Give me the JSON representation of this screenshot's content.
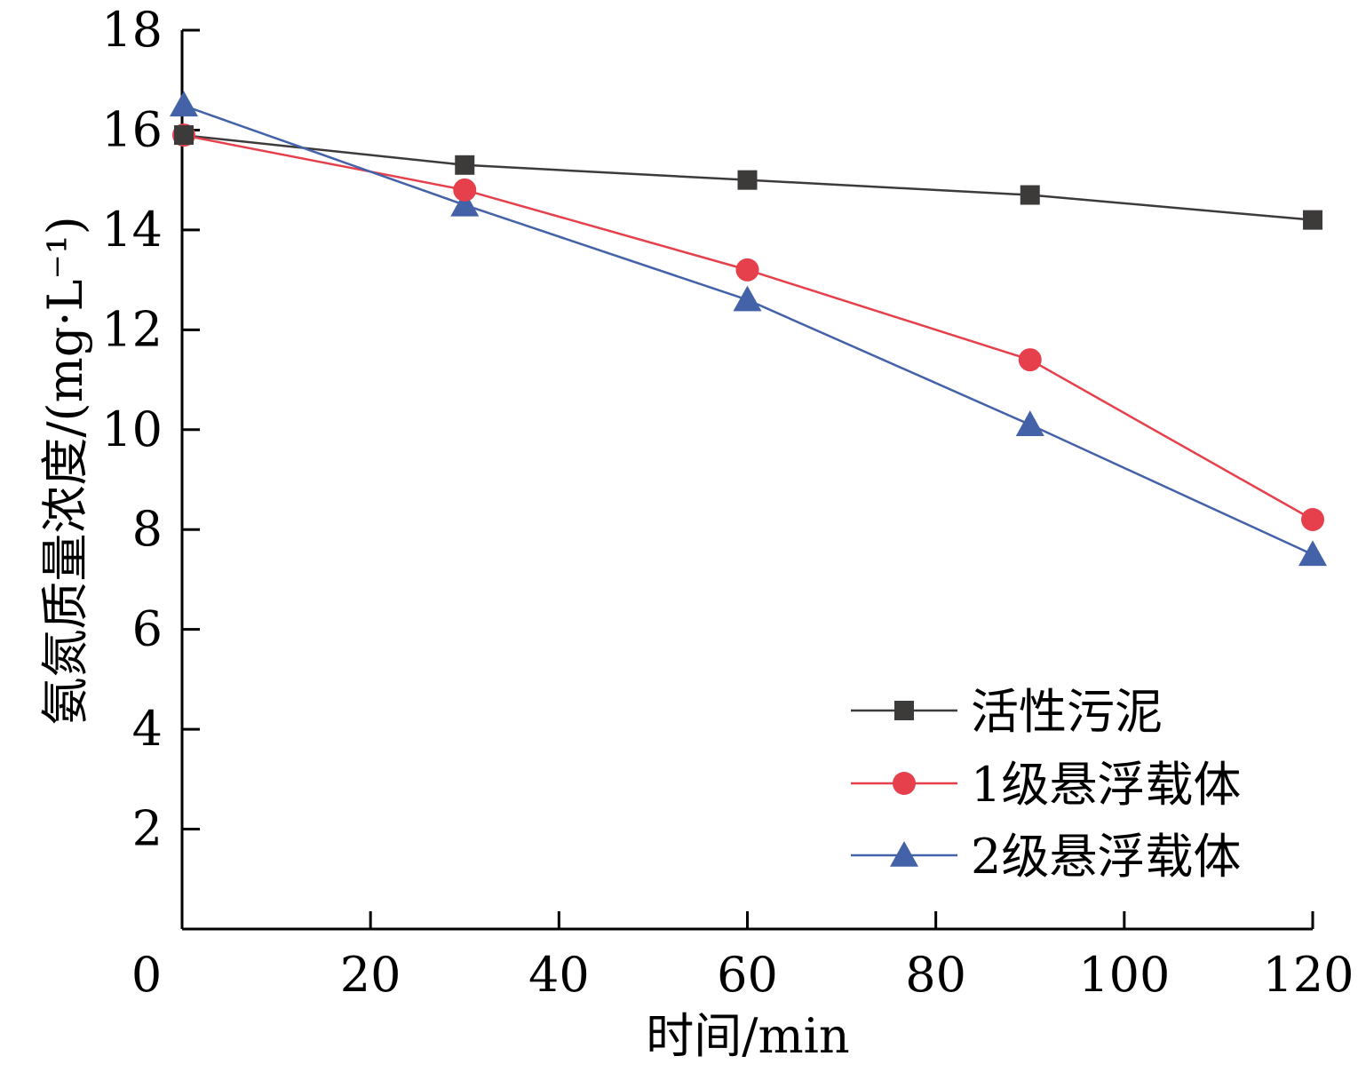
{
  "chart_data": {
    "type": "line",
    "title": "",
    "xlabel": "时间/min",
    "ylabel": "氨氮质量浓度/(mg·L⁻¹)",
    "xlim": [
      0,
      120
    ],
    "ylim": [
      0,
      18
    ],
    "xticks": [
      0,
      20,
      40,
      60,
      80,
      100,
      120
    ],
    "yticks": [
      2,
      4,
      6,
      8,
      10,
      12,
      14,
      16,
      18
    ],
    "grid": false,
    "legend_position": "bottom-right",
    "x": [
      0,
      30,
      60,
      90,
      120
    ],
    "series": [
      {
        "name": "活性污泥",
        "values": [
          15.9,
          15.3,
          15.0,
          14.7,
          14.2
        ],
        "color": "#3d3a3a",
        "marker": "square"
      },
      {
        "name": "1级悬浮载体",
        "values": [
          15.9,
          14.8,
          13.2,
          11.4,
          8.2
        ],
        "color": "#e5404b",
        "marker": "circle"
      },
      {
        "name": "2级悬浮载体",
        "values": [
          16.5,
          14.5,
          12.6,
          10.1,
          7.5
        ],
        "color": "#4462a8",
        "marker": "triangle"
      }
    ]
  }
}
